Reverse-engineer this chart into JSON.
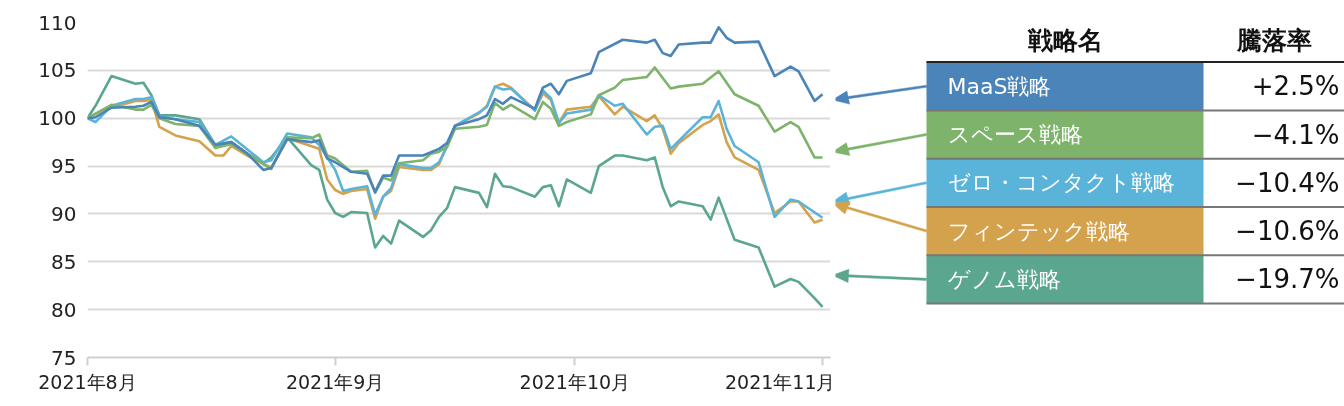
{
  "chart_data": {
    "type": "line",
    "legend": "right",
    "legend_title": "戦略名",
    "grid": "y",
    "line_style": "solid",
    "marker": "none",
    "xlim": [
      "2021-08-01",
      "2021-11-02"
    ],
    "xticks": [
      {
        "value": "2021-08-01",
        "label": "2021年8月"
      },
      {
        "value": "2021-09-01",
        "label": "2021年9月"
      },
      {
        "value": "2021-10-01",
        "label": "2021年10月"
      },
      {
        "value": "2021-11-01",
        "label": "2021年11月"
      }
    ],
    "ylim": [
      75,
      110
    ],
    "yticks": [
      75,
      80,
      85,
      90,
      95,
      100,
      105,
      110
    ],
    "annotations": [
      "騰落率",
      "+2.5%",
      "−4.1%",
      "−10.4%",
      "−10.6%",
      "−19.7%"
    ],
    "series": [
      {
        "name": "MaaS戦略",
        "color": "#4a84b8",
        "x": [
          "2021-08-01",
          "2021-08-02",
          "2021-08-04",
          "2021-08-07",
          "2021-08-08",
          "2021-08-09",
          "2021-08-10",
          "2021-08-12",
          "2021-08-15",
          "2021-08-17",
          "2021-08-19",
          "2021-08-21",
          "2021-08-23",
          "2021-08-24",
          "2021-08-26",
          "2021-08-29",
          "2021-08-30",
          "2021-08-31",
          "2021-09-01",
          "2021-09-03",
          "2021-09-05",
          "2021-09-06",
          "2021-09-07",
          "2021-09-08",
          "2021-09-09",
          "2021-09-12",
          "2021-09-14",
          "2021-09-15",
          "2021-09-16",
          "2021-09-19",
          "2021-09-20",
          "2021-09-21",
          "2021-09-22",
          "2021-09-23",
          "2021-09-26",
          "2021-09-27",
          "2021-09-28",
          "2021-09-29",
          "2021-09-30",
          "2021-10-03",
          "2021-10-04",
          "2021-10-07",
          "2021-10-10",
          "2021-10-11",
          "2021-10-12",
          "2021-10-13",
          "2021-10-14",
          "2021-10-17",
          "2021-10-18",
          "2021-10-19",
          "2021-10-20",
          "2021-10-21",
          "2021-10-24",
          "2021-10-26",
          "2021-10-28",
          "2021-10-29",
          "2021-10-31",
          "2021-11-01"
        ],
        "values": [
          100,
          100.1,
          101.1,
          101.2,
          101.3,
          101.7,
          100.1,
          99.9,
          99.2,
          97.2,
          97.5,
          96.3,
          94.6,
          94.8,
          97.8,
          97.5,
          97.7,
          95.8,
          95.4,
          94.4,
          94.2,
          92.3,
          94.0,
          94.0,
          96.1,
          96.1,
          96.8,
          97.4,
          99.2,
          99.9,
          100.3,
          102.0,
          101.5,
          102.2,
          101.0,
          103.2,
          103.6,
          102.5,
          103.9,
          104.7,
          106.9,
          108.2,
          107.9,
          108.2,
          106.8,
          106.5,
          107.7,
          107.9,
          107.9,
          109.5,
          108.4,
          107.9,
          108.0,
          104.4,
          105.4,
          104.9,
          101.8,
          102.5
        ]
      },
      {
        "name": "スペース戦略",
        "color": "#7db36a",
        "x": [
          "2021-08-01",
          "2021-08-04",
          "2021-08-07",
          "2021-08-08",
          "2021-08-09",
          "2021-08-10",
          "2021-08-12",
          "2021-08-15",
          "2021-08-17",
          "2021-08-19",
          "2021-08-21",
          "2021-08-24",
          "2021-08-26",
          "2021-08-29",
          "2021-08-30",
          "2021-08-31",
          "2021-09-01",
          "2021-09-03",
          "2021-09-05",
          "2021-09-06",
          "2021-09-07",
          "2021-09-08",
          "2021-09-09",
          "2021-09-12",
          "2021-09-13",
          "2021-09-14",
          "2021-09-15",
          "2021-09-16",
          "2021-09-19",
          "2021-09-20",
          "2021-09-21",
          "2021-09-22",
          "2021-09-23",
          "2021-09-26",
          "2021-09-27",
          "2021-09-28",
          "2021-09-29",
          "2021-09-30",
          "2021-10-03",
          "2021-10-04",
          "2021-10-06",
          "2021-10-07",
          "2021-10-10",
          "2021-10-11",
          "2021-10-13",
          "2021-10-14",
          "2021-10-17",
          "2021-10-19",
          "2021-10-21",
          "2021-10-24",
          "2021-10-26",
          "2021-10-28",
          "2021-10-29",
          "2021-10-31",
          "2021-11-01"
        ],
        "values": [
          100,
          101.4,
          100.9,
          100.9,
          101.4,
          100.0,
          99.4,
          99.2,
          96.9,
          97.3,
          96.3,
          94.7,
          98.0,
          97.9,
          98.3,
          96.1,
          95.8,
          94.4,
          94.5,
          92.2,
          93.8,
          93.5,
          95.3,
          95.6,
          96.3,
          96.5,
          97.0,
          98.9,
          99.1,
          99.3,
          101.6,
          100.9,
          101.4,
          99.9,
          101.7,
          101.0,
          99.2,
          99.6,
          100.4,
          102.4,
          103.2,
          104.0,
          104.3,
          105.3,
          103.1,
          103.3,
          103.6,
          104.9,
          102.5,
          101.3,
          98.6,
          99.6,
          99.1,
          95.9,
          95.9
        ]
      },
      {
        "name": "ゼロ・コンタクト戦略",
        "color": "#5ab4d9",
        "x": [
          "2021-08-01",
          "2021-08-02",
          "2021-08-04",
          "2021-08-07",
          "2021-08-08",
          "2021-08-09",
          "2021-08-10",
          "2021-08-12",
          "2021-08-15",
          "2021-08-17",
          "2021-08-19",
          "2021-08-23",
          "2021-08-24",
          "2021-08-26",
          "2021-08-29",
          "2021-08-30",
          "2021-09-01",
          "2021-09-02",
          "2021-09-03",
          "2021-09-05",
          "2021-09-06",
          "2021-09-07",
          "2021-09-08",
          "2021-09-09",
          "2021-09-12",
          "2021-09-13",
          "2021-09-14",
          "2021-09-15",
          "2021-09-16",
          "2021-09-19",
          "2021-09-20",
          "2021-09-21",
          "2021-09-22",
          "2021-09-23",
          "2021-09-26",
          "2021-09-27",
          "2021-09-28",
          "2021-09-29",
          "2021-09-30",
          "2021-10-03",
          "2021-10-04",
          "2021-10-06",
          "2021-10-07",
          "2021-10-10",
          "2021-10-11",
          "2021-10-12",
          "2021-10-13",
          "2021-10-17",
          "2021-10-18",
          "2021-10-19",
          "2021-10-20",
          "2021-10-21",
          "2021-10-24",
          "2021-10-26",
          "2021-10-28",
          "2021-10-29",
          "2021-11-01"
        ],
        "values": [
          100,
          99.6,
          101.3,
          102.0,
          102.0,
          102.2,
          100.2,
          99.9,
          99.6,
          97.2,
          98.1,
          95.4,
          95.6,
          98.4,
          98.0,
          97.2,
          94.6,
          92.4,
          92.6,
          92.9,
          89.9,
          91.8,
          92.7,
          95.2,
          94.8,
          94.8,
          95.4,
          97.0,
          99.2,
          100.6,
          101.2,
          103.3,
          103.0,
          103.1,
          100.8,
          102.9,
          102.1,
          99.5,
          100.5,
          100.9,
          102.4,
          101.3,
          101.5,
          98.3,
          99.1,
          99.2,
          96.8,
          100.1,
          100.1,
          101.8,
          98.9,
          97.1,
          95.4,
          89.7,
          91.5,
          91.3,
          89.6
        ]
      },
      {
        "name": "フィンテック戦略",
        "color": "#d4a24c",
        "x": [
          "2021-08-01",
          "2021-08-03",
          "2021-08-04",
          "2021-08-07",
          "2021-08-08",
          "2021-08-09",
          "2021-08-10",
          "2021-08-12",
          "2021-08-15",
          "2021-08-17",
          "2021-08-18",
          "2021-08-19",
          "2021-08-21",
          "2021-08-24",
          "2021-08-26",
          "2021-08-30",
          "2021-08-31",
          "2021-09-01",
          "2021-09-02",
          "2021-09-03",
          "2021-09-05",
          "2021-09-06",
          "2021-09-07",
          "2021-09-08",
          "2021-09-09",
          "2021-09-12",
          "2021-09-13",
          "2021-09-14",
          "2021-09-15",
          "2021-09-16",
          "2021-09-19",
          "2021-09-20",
          "2021-09-21",
          "2021-09-22",
          "2021-09-23",
          "2021-09-26",
          "2021-09-27",
          "2021-09-28",
          "2021-09-29",
          "2021-09-30",
          "2021-10-03",
          "2021-10-04",
          "2021-10-06",
          "2021-10-07",
          "2021-10-10",
          "2021-10-11",
          "2021-10-12",
          "2021-10-13",
          "2021-10-14",
          "2021-10-17",
          "2021-10-18",
          "2021-10-19",
          "2021-10-20",
          "2021-10-21",
          "2021-10-24",
          "2021-10-26",
          "2021-10-28",
          "2021-10-29",
          "2021-10-31",
          "2021-11-01"
        ],
        "values": [
          100,
          100.9,
          101.1,
          101.8,
          101.8,
          101.9,
          99.1,
          98.2,
          97.6,
          96.1,
          96.1,
          97.1,
          96.1,
          94.8,
          97.9,
          96.8,
          93.6,
          92.5,
          92.1,
          92.4,
          92.6,
          89.5,
          91.8,
          92.4,
          94.9,
          94.6,
          94.6,
          95.2,
          97.2,
          99.2,
          100.5,
          101.3,
          103.3,
          103.6,
          103.2,
          100.8,
          102.6,
          101.9,
          99.5,
          100.9,
          101.2,
          102.3,
          100.4,
          101.2,
          99.7,
          100.3,
          98.9,
          96.3,
          97.4,
          99.3,
          99.7,
          100.4,
          97.5,
          95.9,
          94.6,
          90.1,
          91.3,
          91.3,
          89.1,
          89.4
        ]
      },
      {
        "name": "ゲノム戦略",
        "color": "#5aa68f",
        "x": [
          "2021-08-01",
          "2021-08-02",
          "2021-08-04",
          "2021-08-07",
          "2021-08-08",
          "2021-08-09",
          "2021-08-10",
          "2021-08-12",
          "2021-08-15",
          "2021-08-17",
          "2021-08-19",
          "2021-08-21",
          "2021-08-23",
          "2021-08-24",
          "2021-08-26",
          "2021-08-29",
          "2021-08-30",
          "2021-08-31",
          "2021-09-01",
          "2021-09-02",
          "2021-09-03",
          "2021-09-05",
          "2021-09-06",
          "2021-09-07",
          "2021-09-08",
          "2021-09-09",
          "2021-09-12",
          "2021-09-13",
          "2021-09-14",
          "2021-09-15",
          "2021-09-16",
          "2021-09-19",
          "2021-09-20",
          "2021-09-21",
          "2021-09-22",
          "2021-09-23",
          "2021-09-26",
          "2021-09-27",
          "2021-09-28",
          "2021-09-29",
          "2021-09-30",
          "2021-10-03",
          "2021-10-04",
          "2021-10-06",
          "2021-10-07",
          "2021-10-10",
          "2021-10-11",
          "2021-10-12",
          "2021-10-13",
          "2021-10-14",
          "2021-10-17",
          "2021-10-18",
          "2021-10-19",
          "2021-10-21",
          "2021-10-24",
          "2021-10-26",
          "2021-10-28",
          "2021-10-29",
          "2021-10-31",
          "2021-11-01"
        ],
        "values": [
          100,
          101.3,
          104.4,
          103.6,
          103.7,
          102.4,
          100.3,
          100.3,
          99.9,
          97.2,
          97.5,
          96.3,
          95.3,
          95.9,
          98.0,
          95.1,
          94.6,
          91.5,
          90.1,
          89.7,
          90.2,
          90.1,
          86.5,
          87.7,
          86.9,
          89.3,
          87.6,
          88.3,
          89.7,
          90.6,
          92.8,
          92.2,
          90.7,
          94.2,
          92.9,
          92.8,
          91.8,
          92.8,
          93.0,
          90.8,
          93.6,
          92.2,
          95.0,
          96.1,
          96.1,
          95.6,
          95.9,
          92.8,
          90.8,
          91.3,
          90.8,
          89.4,
          91.7,
          87.3,
          86.5,
          82.4,
          83.2,
          82.9,
          81.2,
          80.3
        ]
      }
    ]
  }
}
